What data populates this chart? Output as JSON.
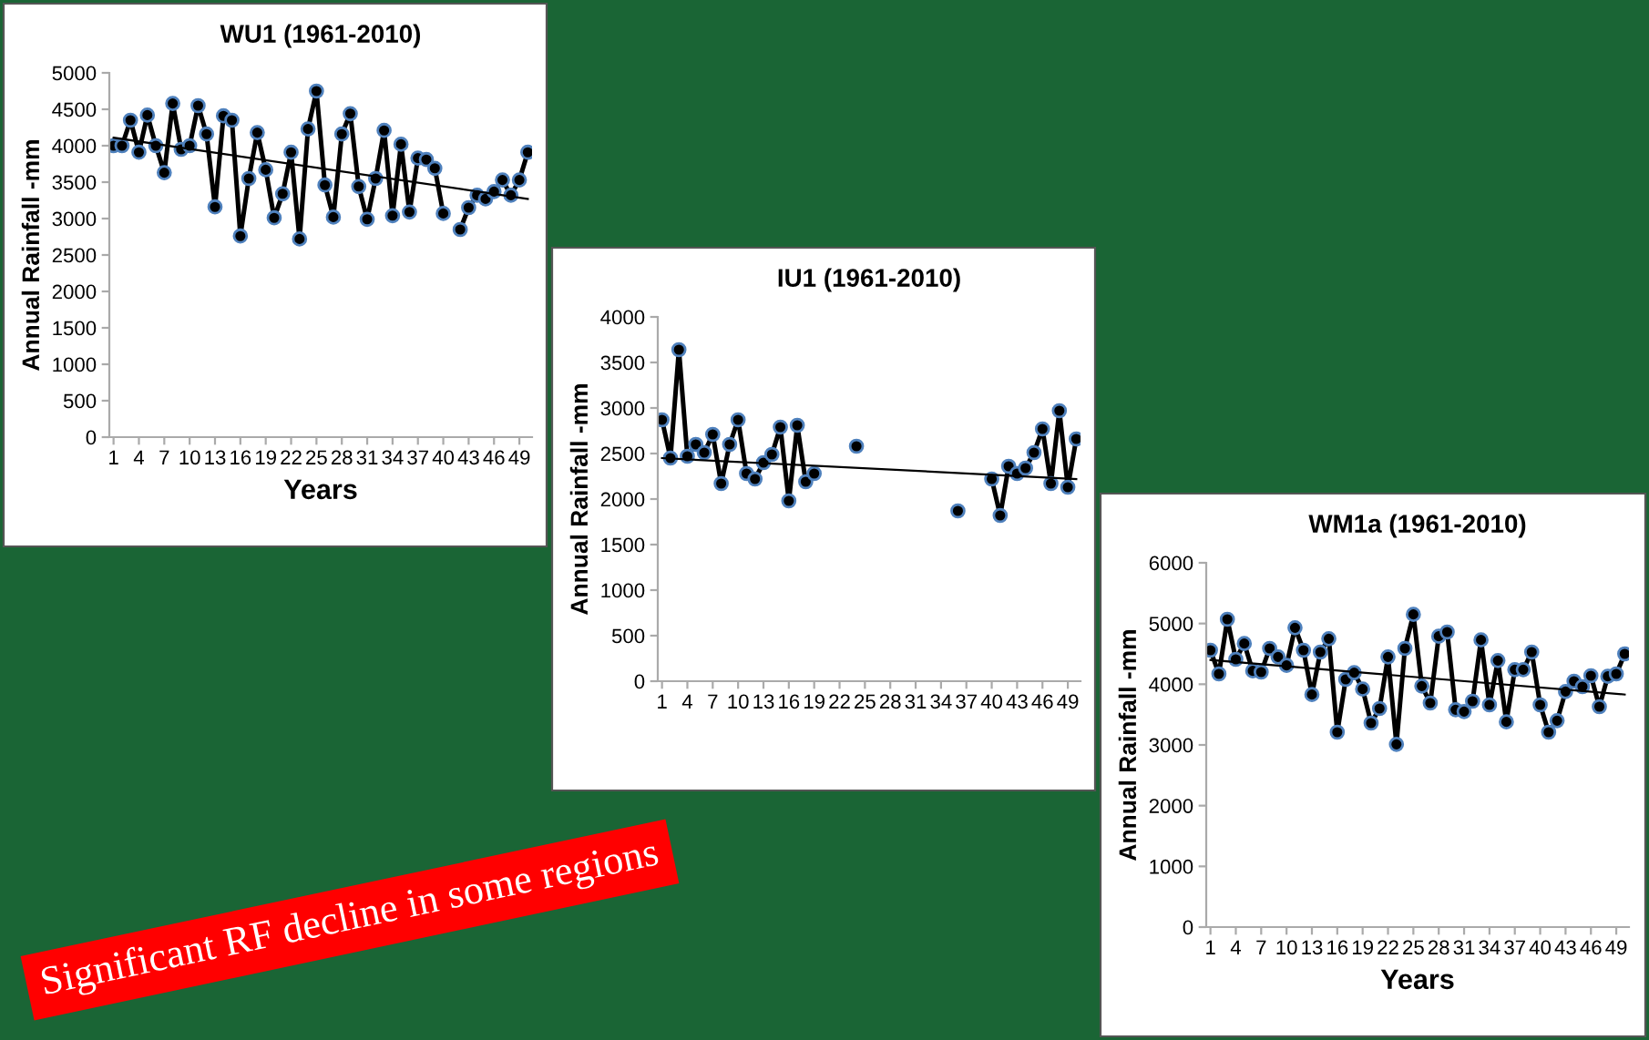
{
  "chart_data": [
    {
      "type": "line",
      "title": "WU1 (1961-2010)",
      "xlabel": "Years",
      "ylabel": "Annual Rainfall -mm",
      "xlim": [
        0.5,
        50.5
      ],
      "xticks": [
        1,
        4,
        7,
        10,
        13,
        16,
        19,
        22,
        25,
        28,
        31,
        34,
        37,
        40,
        43,
        46,
        49
      ],
      "ylim": [
        0,
        5000
      ],
      "yticks": [
        0,
        500,
        1000,
        1500,
        2000,
        2500,
        3000,
        3500,
        4000,
        4500,
        5000
      ],
      "grid": false,
      "legend": false,
      "series": [
        {
          "color": "#000000",
          "marker": "circle",
          "x": [
            1,
            2,
            3,
            4,
            5,
            6,
            7,
            8,
            9,
            10,
            11,
            12,
            13,
            14,
            15,
            16,
            17,
            18,
            19,
            20,
            21,
            22,
            23,
            24,
            25,
            26,
            27,
            28,
            29,
            30,
            31,
            32,
            33,
            34,
            35,
            36,
            37,
            38,
            39,
            40,
            41,
            42,
            43,
            44,
            45,
            46,
            47,
            48,
            49,
            50
          ],
          "values": [
            4000,
            4000,
            4350,
            3910,
            4420,
            4000,
            3630,
            4580,
            3950,
            4000,
            4550,
            4160,
            3160,
            4410,
            4350,
            2760,
            3550,
            4180,
            3670,
            3010,
            3340,
            3910,
            2720,
            4230,
            4750,
            3460,
            3020,
            4160,
            4440,
            3440,
            2990,
            3550,
            4210,
            3040,
            4020,
            3090,
            3830,
            3810,
            3690,
            3070,
            null,
            2850,
            3150,
            3320,
            3270,
            3370,
            3530,
            3320,
            3530,
            3910
          ]
        },
        {
          "type": "line",
          "color": "#000000",
          "marker": "none",
          "x": [
            1,
            50
          ],
          "values": [
            4110,
            3270
          ]
        }
      ]
    },
    {
      "type": "line",
      "title": "IU1 (1961-2010)",
      "ylabel": "Annual Rainfall -mm",
      "xlim": [
        0.5,
        50.5
      ],
      "xticks": [
        1,
        4,
        7,
        10,
        13,
        16,
        19,
        22,
        25,
        28,
        31,
        34,
        37,
        40,
        43,
        46,
        49
      ],
      "ylim": [
        0,
        4000
      ],
      "yticks": [
        0,
        500,
        1000,
        1500,
        2000,
        2500,
        3000,
        3500,
        4000
      ],
      "grid": false,
      "legend": false,
      "annotations": [
        "Significant RF decline in some regions"
      ],
      "series": [
        {
          "color": "#000000",
          "marker": "circle",
          "x": [
            1,
            2,
            3,
            4,
            5,
            6,
            7,
            8,
            9,
            10,
            11,
            12,
            13,
            14,
            15,
            16,
            17,
            18,
            19,
            20,
            21,
            22,
            23,
            24,
            25,
            26,
            27,
            28,
            29,
            30,
            31,
            32,
            33,
            34,
            35,
            36,
            37,
            38,
            39,
            40,
            41,
            42,
            43,
            44,
            45,
            46,
            47,
            48,
            49,
            50
          ],
          "values": [
            2870,
            2450,
            3640,
            2470,
            2600,
            2510,
            2710,
            2170,
            2600,
            2870,
            2280,
            2220,
            2400,
            2490,
            2790,
            1980,
            2810,
            2190,
            2280,
            null,
            null,
            null,
            null,
            2580,
            null,
            null,
            null,
            null,
            null,
            null,
            null,
            null,
            null,
            null,
            null,
            1870,
            null,
            null,
            null,
            2220,
            1820,
            2360,
            2280,
            2340,
            2510,
            2770,
            2170,
            2970,
            2130,
            2660
          ]
        },
        {
          "type": "line",
          "color": "#000000",
          "marker": "none",
          "x": [
            1,
            50
          ],
          "values": [
            2450,
            2220
          ]
        }
      ]
    },
    {
      "type": "line",
      "title": "WM1a (1961-2010)",
      "xlabel": "Years",
      "ylabel": "Annual Rainfall -mm",
      "xlim": [
        0.5,
        50.5
      ],
      "xticks": [
        1,
        4,
        7,
        10,
        13,
        16,
        19,
        22,
        25,
        28,
        31,
        34,
        37,
        40,
        43,
        46,
        49
      ],
      "ylim": [
        0,
        6000
      ],
      "yticks": [
        0,
        1000,
        2000,
        3000,
        4000,
        5000,
        6000
      ],
      "grid": false,
      "legend": false,
      "series": [
        {
          "color": "#000000",
          "marker": "circle",
          "x": [
            1,
            2,
            3,
            4,
            5,
            6,
            7,
            8,
            9,
            10,
            11,
            12,
            13,
            14,
            15,
            16,
            17,
            18,
            19,
            20,
            21,
            22,
            23,
            24,
            25,
            26,
            27,
            28,
            29,
            30,
            31,
            32,
            33,
            34,
            35,
            36,
            37,
            38,
            39,
            40,
            41,
            42,
            43,
            44,
            45,
            46,
            47,
            48,
            49,
            50
          ],
          "values": [
            4560,
            4170,
            5070,
            4410,
            4670,
            4220,
            4200,
            4590,
            4450,
            4310,
            4930,
            4560,
            3830,
            4530,
            4750,
            3210,
            4080,
            4190,
            3920,
            3360,
            3600,
            4450,
            3010,
            4590,
            5150,
            3970,
            3690,
            4790,
            4860,
            3580,
            3550,
            3720,
            4730,
            3660,
            4390,
            3380,
            4240,
            4240,
            4530,
            3660,
            3210,
            3400,
            3880,
            4050,
            3960,
            4140,
            3630,
            4130,
            4170,
            4500
          ]
        },
        {
          "type": "line",
          "color": "#000000",
          "marker": "none",
          "x": [
            1,
            50
          ],
          "values": [
            4400,
            3830
          ]
        }
      ]
    }
  ]
}
